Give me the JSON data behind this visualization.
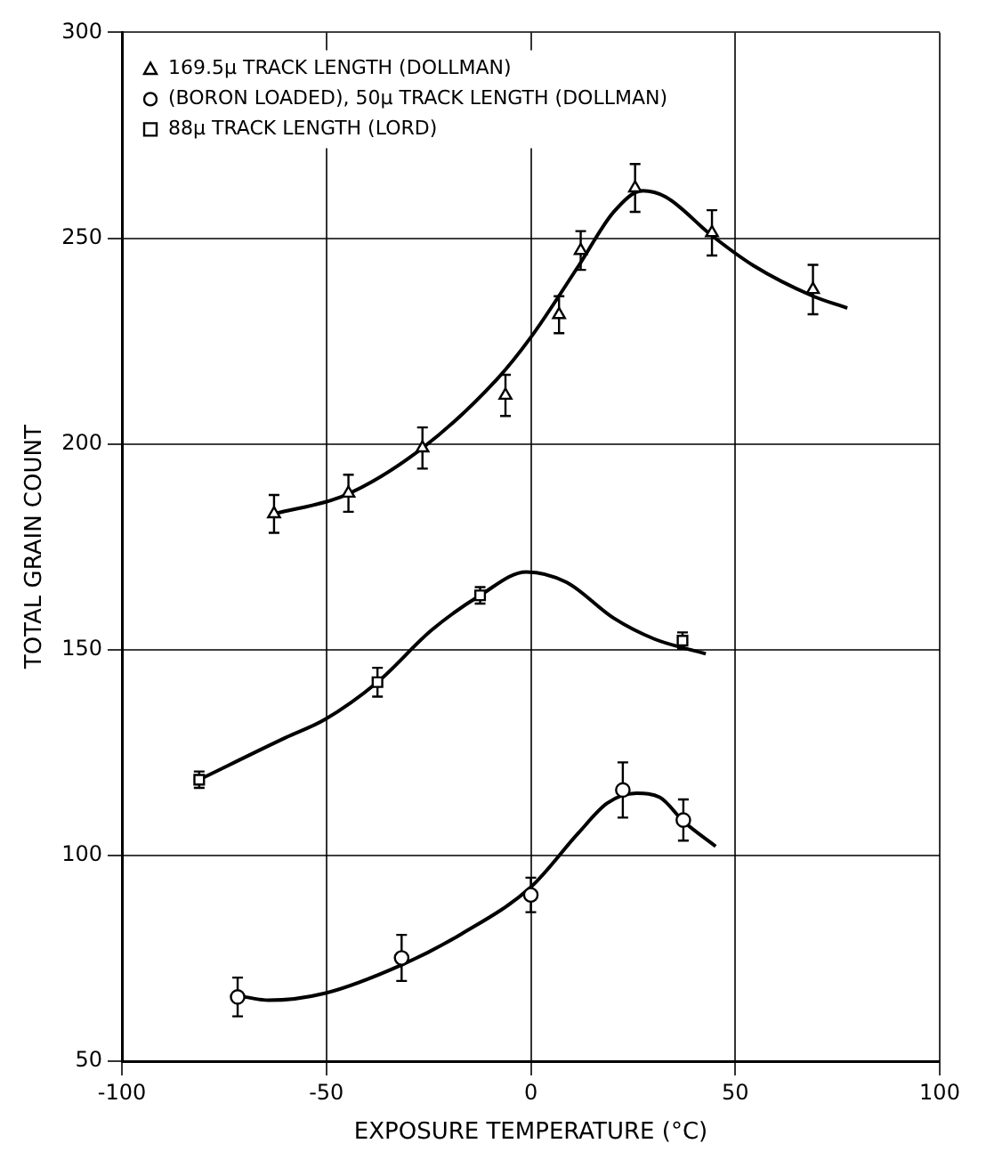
{
  "chart_data": {
    "type": "scatter",
    "xlabel": "EXPOSURE TEMPERATURE (°C)",
    "ylabel": "TOTAL GRAIN COUNT",
    "xlim": [
      -100,
      100
    ],
    "xticks": [
      -100,
      -50,
      0,
      50,
      100
    ],
    "ylim": [
      50,
      300
    ],
    "yticks": [
      50,
      100,
      150,
      200,
      250,
      300
    ],
    "grid": true,
    "legend": "top left",
    "series": [
      {
        "name": "169.5μ TRACK LENGTH (DOLLMAN)",
        "type": "scatter",
        "marker": "triangle",
        "color": "#000000",
        "x": [
          -62.8,
          -44.6,
          -26.5,
          -6.2,
          6.9,
          12.2,
          25.5,
          44.3,
          69
        ],
        "values": [
          183,
          188,
          199,
          211.8,
          231.4,
          247,
          262.2,
          251.3,
          237.5
        ],
        "errors": [
          4.6,
          4.5,
          5,
          5,
          4.5,
          4.7,
          5.8,
          5.5,
          6
        ]
      },
      {
        "name": "(BORON LOADED), 50μ TRACK LENGTH (DOLLMAN)",
        "type": "scatter",
        "marker": "circle",
        "color": "#000000",
        "x": [
          -71.7,
          -31.6,
          0,
          22.5,
          37.3
        ],
        "values": [
          65.6,
          75.1,
          90.4,
          115.9,
          108.6
        ],
        "errors": [
          4.7,
          5.6,
          4.2,
          6.7,
          5
        ]
      },
      {
        "name": "88μ TRACK LENGTH (LORD)",
        "type": "scatter",
        "marker": "square",
        "color": "#000000",
        "x": [
          -81.1,
          -37.5,
          -12.4,
          37.1
        ],
        "values": [
          118.4,
          142.1,
          163.2,
          152.2
        ],
        "errors": [
          2,
          3.5,
          2,
          2
        ]
      },
      {
        "type": "line",
        "marker": "none",
        "color": "#000000",
        "x": [
          -62.8,
          -45.5,
          -26.5,
          -8.3,
          0,
          11.7,
          20.3,
          27.3,
          33,
          44.3,
          54.5,
          68.8,
          77.4
        ],
        "values": [
          183,
          187.5,
          199,
          215.7,
          225.9,
          243.3,
          256.4,
          261.5,
          260,
          250.6,
          243.3,
          236,
          233
        ]
      },
      {
        "type": "line",
        "marker": "none",
        "color": "#000000",
        "x": [
          -81.1,
          -60,
          -50.4,
          -37.5,
          -24.2,
          -12.4,
          -1.1,
          8.7,
          20.2,
          30.2,
          42.8
        ],
        "values": [
          118.4,
          128.6,
          133,
          142.1,
          154.8,
          163.2,
          168.9,
          166.4,
          157.7,
          152.6,
          149
        ]
      },
      {
        "type": "line",
        "marker": "none",
        "color": "#000000",
        "x": [
          -70,
          -64.2,
          -50.4,
          -31.6,
          -17,
          0,
          11.6,
          18.7,
          25.9,
          31.6,
          37.3,
          45.2
        ],
        "values": [
          65.6,
          64.8,
          66.5,
          73.4,
          80.9,
          92.3,
          105.4,
          112.7,
          115.1,
          114.1,
          108.3,
          102.2
        ]
      }
    ]
  }
}
